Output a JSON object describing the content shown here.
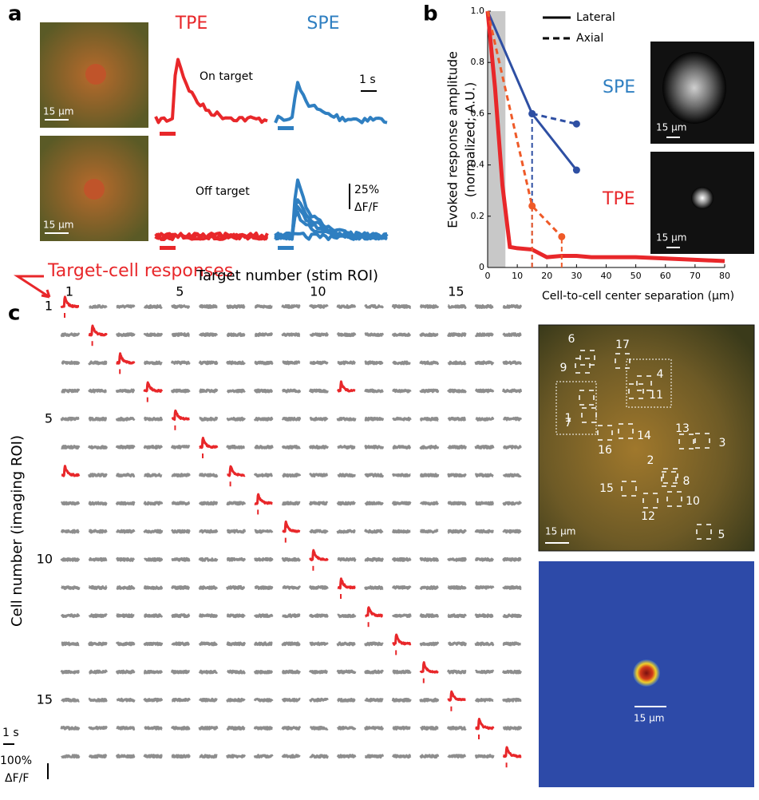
{
  "panel_a": {
    "label": "a",
    "tpe": "TPE",
    "spe": "SPE",
    "on_target": "On target",
    "off_target": "Off target",
    "time_scale": "1 s",
    "amp_scale": "25%",
    "amp_unit": "ΔF/F",
    "scale_bar_top": "15 µm",
    "scale_bar_bottom": "15 µm"
  },
  "annotation": "Target-cell responses",
  "chart_data": {
    "type": "line",
    "label": "b",
    "xlabel": "Cell-to-cell center separation (µm)",
    "ylabel": [
      "Evoked response amplitude",
      "(normalized; A.U.)"
    ],
    "xlim": [
      0,
      80
    ],
    "xticks": [
      0,
      10,
      20,
      30,
      40,
      50,
      60,
      70,
      80
    ],
    "ylim": [
      0,
      1
    ],
    "yticks": [
      0,
      0.2,
      0.4,
      0.6,
      0.8,
      {
        "value": 1,
        "label": "1.0"
      }
    ],
    "shaded_region": [
      0,
      6
    ],
    "legend": [
      {
        "name": "Lateral",
        "style": "solid"
      },
      {
        "name": "Axial",
        "style": "dashed"
      }
    ],
    "series": [
      {
        "group": "SPE",
        "style": "solid",
        "color": "#2e4fa3",
        "markers": true,
        "x": [
          0,
          15,
          30
        ],
        "values": [
          1,
          0.6,
          0.38
        ]
      },
      {
        "group": "SPE",
        "style": "dashed",
        "color": "#2e4fa3",
        "markers": true,
        "drop_lines": [
          15
        ],
        "x": [
          15,
          30
        ],
        "values": [
          0.6,
          0.56
        ]
      },
      {
        "group": "TPE",
        "style": "solid",
        "color": "#e8272a",
        "markers": false,
        "x": [
          0,
          2.5,
          5,
          7.5,
          10,
          15,
          20,
          25,
          30,
          35,
          40,
          50,
          60,
          70,
          80
        ],
        "values": [
          1,
          0.7,
          0.32,
          0.08,
          0.075,
          0.07,
          0.04,
          0.045,
          0.045,
          0.04,
          0.04,
          0.04,
          0.035,
          0.03,
          0.025
        ]
      },
      {
        "group": "TPE",
        "style": "dashed",
        "color": "#ef5a28",
        "markers": true,
        "drop_lines": [
          15,
          25
        ],
        "x": [
          0,
          15,
          25
        ],
        "values": [
          1,
          0.24,
          0.12
        ]
      }
    ],
    "image_labels": [
      "SPE",
      "TPE"
    ],
    "image_scale": [
      "15 µm",
      "15 µm"
    ]
  },
  "panel_c": {
    "label": "c",
    "title": "Target number (stim ROI)",
    "ylabel": "Cell number (imaging ROI)",
    "n_targets": 17,
    "n_cells": 17,
    "xticks": [
      1,
      5,
      10,
      15
    ],
    "yticks": [
      1,
      5,
      10,
      15
    ],
    "off_diagonal_responses": [
      [
        4,
        11
      ],
      [
        7,
        1
      ]
    ],
    "time_scale": "1 s",
    "amp_scale": "100%",
    "amp_unit": "ΔF/F",
    "roi_labels": [
      "1",
      "2",
      "3",
      "4",
      "5",
      "6",
      "7",
      "8",
      "9",
      "10",
      "11",
      "12",
      "13",
      "14",
      "15",
      "16",
      "17"
    ],
    "scale_bar_top": "15 µm",
    "scale_bar_bottom": "15 µm"
  }
}
